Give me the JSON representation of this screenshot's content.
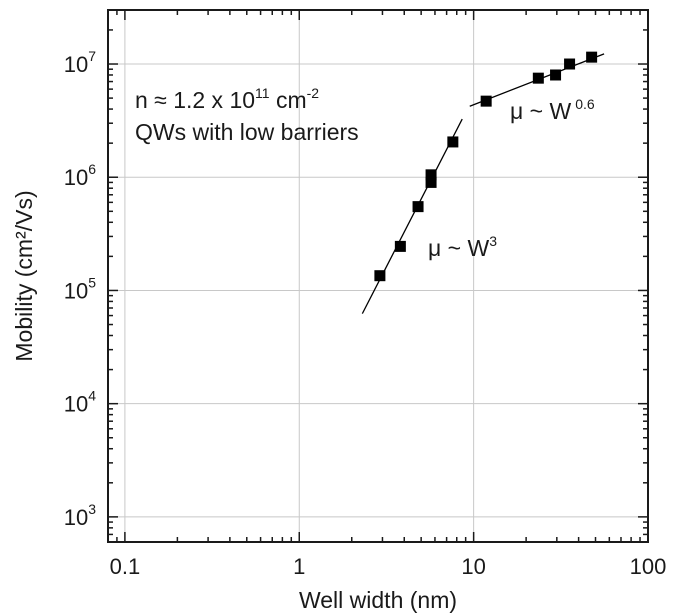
{
  "chart_data": {
    "type": "scatter",
    "xlabel": "Well width (nm)",
    "ylabel": "Mobility (cm²/Vs)",
    "x_scale": "log",
    "y_scale": "log",
    "xlim": [
      0.08,
      100
    ],
    "ylim": [
      600,
      30000000
    ],
    "grid": true,
    "x_ticks": [
      {
        "value": 0.1,
        "label": "0.1"
      },
      {
        "value": 1,
        "label": "1"
      },
      {
        "value": 10,
        "label": "10"
      },
      {
        "value": 100,
        "label": "100"
      }
    ],
    "y_ticks": [
      {
        "value": 1000,
        "base": "10",
        "exp": "3"
      },
      {
        "value": 10000,
        "base": "10",
        "exp": "4"
      },
      {
        "value": 100000,
        "base": "10",
        "exp": "5"
      },
      {
        "value": 1000000,
        "base": "10",
        "exp": "6"
      },
      {
        "value": 10000000,
        "base": "10",
        "exp": "7"
      }
    ],
    "series": [
      {
        "marker": "square",
        "color": "#000000",
        "points": [
          {
            "x": 2.9,
            "y": 135000
          },
          {
            "x": 3.8,
            "y": 245000
          },
          {
            "x": 4.8,
            "y": 550000
          },
          {
            "x": 5.7,
            "y": 900000
          },
          {
            "x": 5.7,
            "y": 1050000
          },
          {
            "x": 7.6,
            "y": 2050000
          },
          {
            "x": 11.8,
            "y": 4700000
          },
          {
            "x": 23.5,
            "y": 7500000
          },
          {
            "x": 29.5,
            "y": 8000000
          },
          {
            "x": 35.5,
            "y": 10000000
          },
          {
            "x": 47.5,
            "y": 11500000
          }
        ]
      }
    ],
    "fit_lines": [
      {
        "label_main": "μ ~ W",
        "label_sup": "3",
        "x_start": 2.3,
        "x_end": 8.6,
        "x_ref": 5.7,
        "y_ref": 950000,
        "slope": 3
      },
      {
        "label_main": "μ ~ W",
        "label_sup": "0.6",
        "x_start": 9.5,
        "x_end": 56,
        "x_ref": 23.5,
        "y_ref": 7300000,
        "slope": 0.6
      }
    ],
    "annotations": {
      "line1_main": "n ≈ 1.2 x 10",
      "line1_sup1": "11",
      "line1_mid": " cm",
      "line1_sup2": "-2",
      "line2": "QWs with low barriers"
    }
  }
}
